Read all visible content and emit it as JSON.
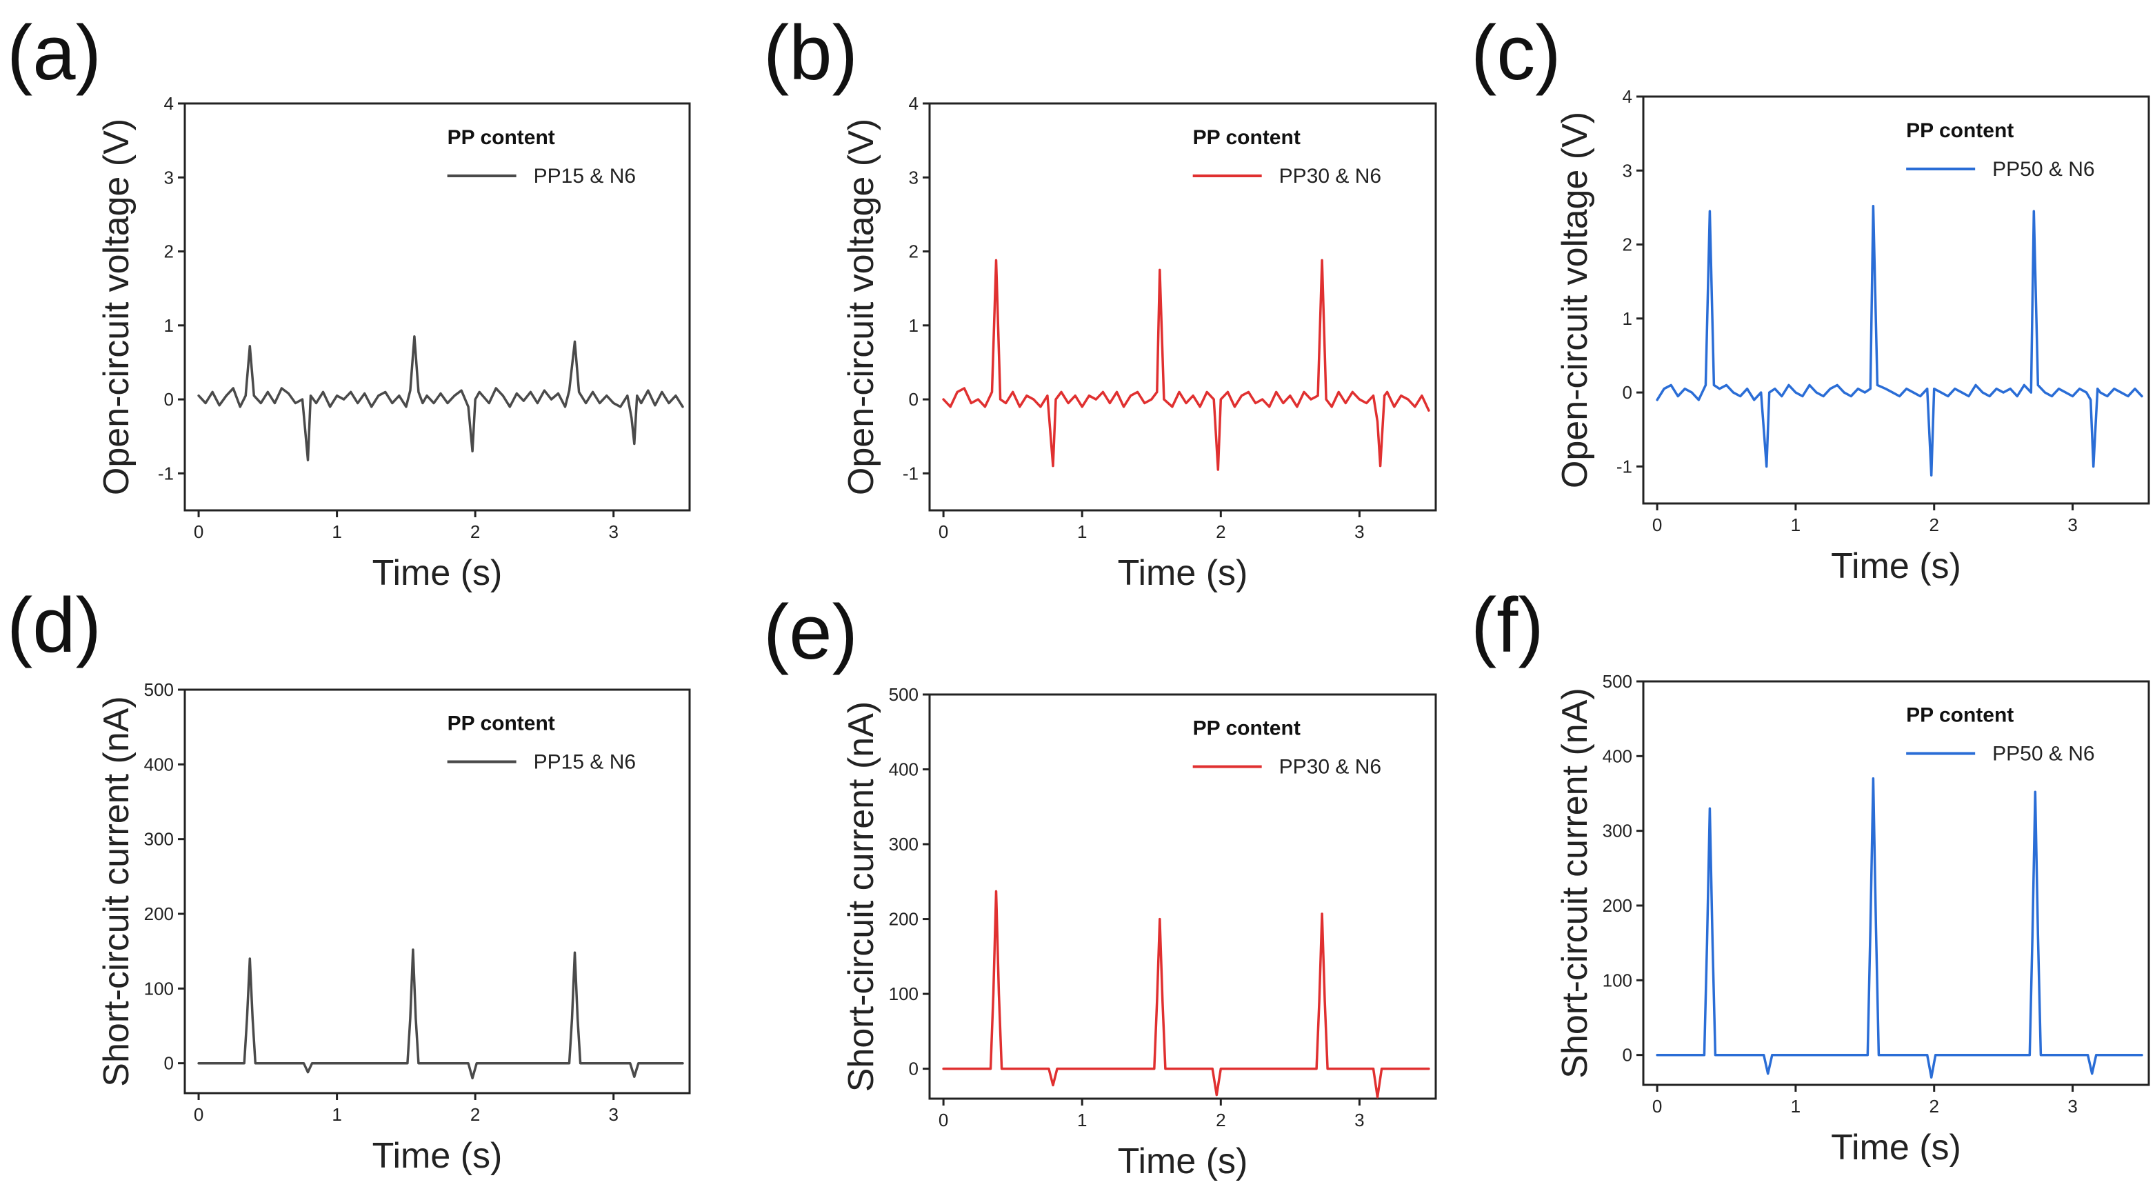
{
  "chart_data": [
    {
      "panel": "(a)",
      "type": "line",
      "title": "",
      "xlabel": "Time (s)",
      "ylabel": "Open-circuit voltage (V)",
      "xlim": [
        -0.1,
        3.55
      ],
      "ylim": [
        -1.5,
        4
      ],
      "xticks": [
        0,
        1,
        2,
        3
      ],
      "yticks": [
        -1,
        0,
        1,
        2,
        3,
        4
      ],
      "legend": {
        "title": "PP content",
        "position": "top-right"
      },
      "series": [
        {
          "name": "PP15 & N6",
          "color": "#4a4a4a",
          "x": [
            0,
            0.05,
            0.1,
            0.15,
            0.2,
            0.25,
            0.3,
            0.34,
            0.37,
            0.4,
            0.45,
            0.5,
            0.55,
            0.6,
            0.65,
            0.7,
            0.75,
            0.79,
            0.81,
            0.85,
            0.9,
            0.95,
            1.0,
            1.05,
            1.1,
            1.15,
            1.2,
            1.25,
            1.3,
            1.35,
            1.4,
            1.45,
            1.5,
            1.53,
            1.56,
            1.59,
            1.62,
            1.65,
            1.7,
            1.75,
            1.8,
            1.85,
            1.9,
            1.95,
            1.98,
            2.0,
            2.03,
            2.1,
            2.15,
            2.2,
            2.25,
            2.3,
            2.35,
            2.4,
            2.45,
            2.5,
            2.55,
            2.6,
            2.65,
            2.68,
            2.72,
            2.75,
            2.8,
            2.85,
            2.9,
            2.95,
            3.0,
            3.05,
            3.1,
            3.13,
            3.15,
            3.17,
            3.2,
            3.25,
            3.3,
            3.35,
            3.4,
            3.45,
            3.5
          ],
          "y": [
            0.05,
            -0.05,
            0.1,
            -0.08,
            0.05,
            0.15,
            -0.1,
            0.05,
            0.72,
            0.05,
            -0.05,
            0.1,
            -0.05,
            0.15,
            0.08,
            -0.05,
            0.0,
            -0.82,
            0.05,
            -0.05,
            0.1,
            -0.1,
            0.05,
            0.0,
            0.1,
            -0.05,
            0.08,
            -0.1,
            0.05,
            0.1,
            -0.05,
            0.05,
            -0.1,
            0.12,
            0.85,
            0.1,
            -0.05,
            0.05,
            -0.05,
            0.08,
            -0.05,
            0.05,
            0.12,
            -0.1,
            -0.7,
            0.0,
            0.1,
            -0.05,
            0.15,
            0.05,
            -0.1,
            0.08,
            -0.02,
            0.1,
            -0.05,
            0.12,
            0.0,
            0.08,
            -0.1,
            0.12,
            0.78,
            0.1,
            -0.05,
            0.1,
            -0.05,
            0.05,
            -0.05,
            -0.1,
            0.05,
            -0.25,
            -0.6,
            0.05,
            -0.05,
            0.12,
            -0.08,
            0.1,
            -0.05,
            0.05,
            -0.1
          ]
        }
      ]
    },
    {
      "panel": "(b)",
      "type": "line",
      "title": "",
      "xlabel": "Time (s)",
      "ylabel": "Open-circuit voltage (V)",
      "xlim": [
        -0.1,
        3.55
      ],
      "ylim": [
        -1.5,
        4
      ],
      "xticks": [
        0,
        1,
        2,
        3
      ],
      "yticks": [
        -1,
        0,
        1,
        2,
        3,
        4
      ],
      "legend": {
        "title": "PP content",
        "position": "top-right"
      },
      "series": [
        {
          "name": "PP30 & N6",
          "color": "#e03030",
          "x": [
            0,
            0.05,
            0.1,
            0.15,
            0.2,
            0.25,
            0.3,
            0.35,
            0.38,
            0.41,
            0.45,
            0.5,
            0.55,
            0.6,
            0.65,
            0.7,
            0.75,
            0.79,
            0.81,
            0.85,
            0.9,
            0.95,
            1.0,
            1.05,
            1.1,
            1.15,
            1.2,
            1.25,
            1.3,
            1.35,
            1.4,
            1.45,
            1.5,
            1.54,
            1.56,
            1.59,
            1.65,
            1.7,
            1.75,
            1.8,
            1.85,
            1.9,
            1.95,
            1.98,
            2.0,
            2.05,
            2.1,
            2.15,
            2.2,
            2.25,
            2.3,
            2.35,
            2.4,
            2.45,
            2.5,
            2.55,
            2.6,
            2.65,
            2.7,
            2.73,
            2.76,
            2.8,
            2.85,
            2.9,
            2.95,
            3.0,
            3.05,
            3.1,
            3.13,
            3.15,
            3.18,
            3.2,
            3.25,
            3.3,
            3.35,
            3.4,
            3.45,
            3.5
          ],
          "y": [
            0.0,
            -0.1,
            0.1,
            0.15,
            -0.05,
            0.0,
            -0.1,
            0.1,
            1.88,
            0.0,
            -0.05,
            0.1,
            -0.1,
            0.05,
            0.0,
            -0.1,
            0.05,
            -0.9,
            0.0,
            0.1,
            -0.05,
            0.05,
            -0.1,
            0.05,
            0.0,
            0.1,
            -0.05,
            0.1,
            -0.1,
            0.05,
            0.1,
            -0.05,
            0.0,
            0.1,
            1.75,
            0.0,
            -0.1,
            0.1,
            -0.05,
            0.05,
            -0.1,
            0.1,
            0.0,
            -0.95,
            0.0,
            0.1,
            -0.1,
            0.05,
            0.1,
            -0.05,
            0.0,
            -0.1,
            0.1,
            -0.05,
            0.05,
            -0.1,
            0.1,
            0.0,
            0.05,
            1.88,
            0.0,
            -0.1,
            0.1,
            -0.05,
            0.1,
            0.0,
            -0.05,
            0.05,
            -0.3,
            -0.9,
            0.05,
            0.1,
            -0.1,
            0.05,
            0.0,
            -0.1,
            0.05,
            -0.15
          ]
        }
      ]
    },
    {
      "panel": "(c)",
      "type": "line",
      "title": "",
      "xlabel": "Time (s)",
      "ylabel": "Open-circuit voltage (V)",
      "xlim": [
        -0.1,
        3.55
      ],
      "ylim": [
        -1.5,
        4
      ],
      "xticks": [
        0,
        1,
        2,
        3
      ],
      "yticks": [
        -1,
        0,
        1,
        2,
        3,
        4
      ],
      "legend": {
        "title": "PP content",
        "position": "top-right"
      },
      "series": [
        {
          "name": "PP50 & N6",
          "color": "#2a6dd6",
          "x": [
            0,
            0.05,
            0.1,
            0.15,
            0.2,
            0.25,
            0.3,
            0.35,
            0.38,
            0.41,
            0.45,
            0.5,
            0.55,
            0.6,
            0.65,
            0.7,
            0.75,
            0.79,
            0.81,
            0.85,
            0.9,
            0.95,
            1.0,
            1.05,
            1.1,
            1.15,
            1.2,
            1.25,
            1.3,
            1.35,
            1.4,
            1.45,
            1.5,
            1.54,
            1.56,
            1.59,
            1.65,
            1.7,
            1.75,
            1.8,
            1.85,
            1.9,
            1.95,
            1.98,
            2.0,
            2.05,
            2.1,
            2.15,
            2.2,
            2.25,
            2.3,
            2.35,
            2.4,
            2.45,
            2.5,
            2.55,
            2.6,
            2.65,
            2.7,
            2.72,
            2.75,
            2.8,
            2.85,
            2.9,
            2.95,
            3.0,
            3.05,
            3.1,
            3.13,
            3.15,
            3.18,
            3.2,
            3.25,
            3.3,
            3.35,
            3.4,
            3.45,
            3.5
          ],
          "y": [
            -0.1,
            0.05,
            0.1,
            -0.05,
            0.05,
            0.0,
            -0.1,
            0.1,
            2.45,
            0.1,
            0.05,
            0.1,
            0.0,
            -0.05,
            0.05,
            -0.1,
            0.0,
            -1.0,
            0.0,
            0.05,
            -0.05,
            0.1,
            0.0,
            -0.05,
            0.1,
            0.0,
            -0.05,
            0.05,
            0.1,
            0.0,
            -0.05,
            0.05,
            0.0,
            0.05,
            2.52,
            0.1,
            0.05,
            0.0,
            -0.05,
            0.05,
            0.0,
            -0.05,
            0.05,
            -1.12,
            0.05,
            0.0,
            -0.05,
            0.05,
            0.0,
            -0.05,
            0.1,
            0.0,
            -0.05,
            0.05,
            0.0,
            0.05,
            -0.05,
            0.1,
            0.0,
            2.45,
            0.1,
            0.0,
            -0.05,
            0.05,
            0.0,
            -0.05,
            0.05,
            0.0,
            -0.1,
            -1.0,
            0.05,
            0.0,
            -0.05,
            0.05,
            0.0,
            -0.05,
            0.05,
            -0.05
          ]
        }
      ]
    },
    {
      "panel": "(d)",
      "type": "line",
      "title": "",
      "xlabel": "Time (s)",
      "ylabel": "Short-circuit current (nA)",
      "xlim": [
        -0.1,
        3.55
      ],
      "ylim": [
        -40,
        500
      ],
      "xticks": [
        0,
        1,
        2,
        3
      ],
      "yticks": [
        0,
        100,
        200,
        300,
        400,
        500
      ],
      "legend": {
        "title": "PP content",
        "position": "top-right"
      },
      "series": [
        {
          "name": "PP15 & N6",
          "color": "#4a4a4a",
          "x": [
            0,
            0.33,
            0.35,
            0.37,
            0.39,
            0.41,
            0.76,
            0.79,
            0.82,
            1.51,
            1.53,
            1.55,
            1.57,
            1.59,
            1.95,
            1.98,
            2.01,
            2.68,
            2.7,
            2.72,
            2.74,
            2.76,
            3.12,
            3.15,
            3.18,
            3.5
          ],
          "y": [
            0,
            0,
            60,
            140,
            60,
            0,
            0,
            -12,
            0,
            0,
            60,
            152,
            60,
            0,
            0,
            -20,
            0,
            0,
            60,
            148,
            60,
            0,
            0,
            -18,
            0,
            0
          ]
        }
      ]
    },
    {
      "panel": "(e)",
      "type": "line",
      "title": "",
      "xlabel": "Time (s)",
      "ylabel": "Short-circuit current (nA)",
      "xlim": [
        -0.1,
        3.55
      ],
      "ylim": [
        -40,
        500
      ],
      "xticks": [
        0,
        1,
        2,
        3
      ],
      "yticks": [
        0,
        100,
        200,
        300,
        400,
        500
      ],
      "legend": {
        "title": "PP content",
        "position": "top-right"
      },
      "series": [
        {
          "name": "PP30 & N6",
          "color": "#e03030",
          "x": [
            0,
            0.34,
            0.36,
            0.38,
            0.4,
            0.42,
            0.76,
            0.79,
            0.82,
            1.52,
            1.54,
            1.56,
            1.58,
            1.6,
            1.94,
            1.97,
            2.0,
            2.69,
            2.71,
            2.73,
            2.75,
            2.77,
            3.1,
            3.13,
            3.16,
            3.5
          ],
          "y": [
            0,
            0,
            100,
            237,
            100,
            0,
            0,
            -22,
            0,
            0,
            90,
            200,
            90,
            0,
            0,
            -35,
            0,
            0,
            90,
            207,
            90,
            0,
            0,
            -38,
            0,
            0
          ]
        }
      ]
    },
    {
      "panel": "(f)",
      "type": "line",
      "title": "",
      "xlabel": "Time (s)",
      "ylabel": "Short-circuit current (nA)",
      "xlim": [
        -0.1,
        3.55
      ],
      "ylim": [
        -40,
        500
      ],
      "xticks": [
        0,
        1,
        2,
        3
      ],
      "yticks": [
        0,
        100,
        200,
        300,
        400,
        500
      ],
      "legend": {
        "title": "PP content",
        "position": "top-right"
      },
      "series": [
        {
          "name": "PP50 & N6",
          "color": "#2a6dd6",
          "x": [
            0,
            0.34,
            0.36,
            0.38,
            0.4,
            0.42,
            0.77,
            0.8,
            0.83,
            1.52,
            1.54,
            1.56,
            1.58,
            1.6,
            1.95,
            1.98,
            2.01,
            2.69,
            2.71,
            2.73,
            2.75,
            2.77,
            3.11,
            3.14,
            3.17,
            3.5
          ],
          "y": [
            0,
            0,
            150,
            330,
            150,
            0,
            0,
            -25,
            0,
            0,
            170,
            370,
            170,
            0,
            0,
            -30,
            0,
            0,
            160,
            352,
            160,
            0,
            0,
            -25,
            0,
            0
          ]
        }
      ]
    }
  ]
}
